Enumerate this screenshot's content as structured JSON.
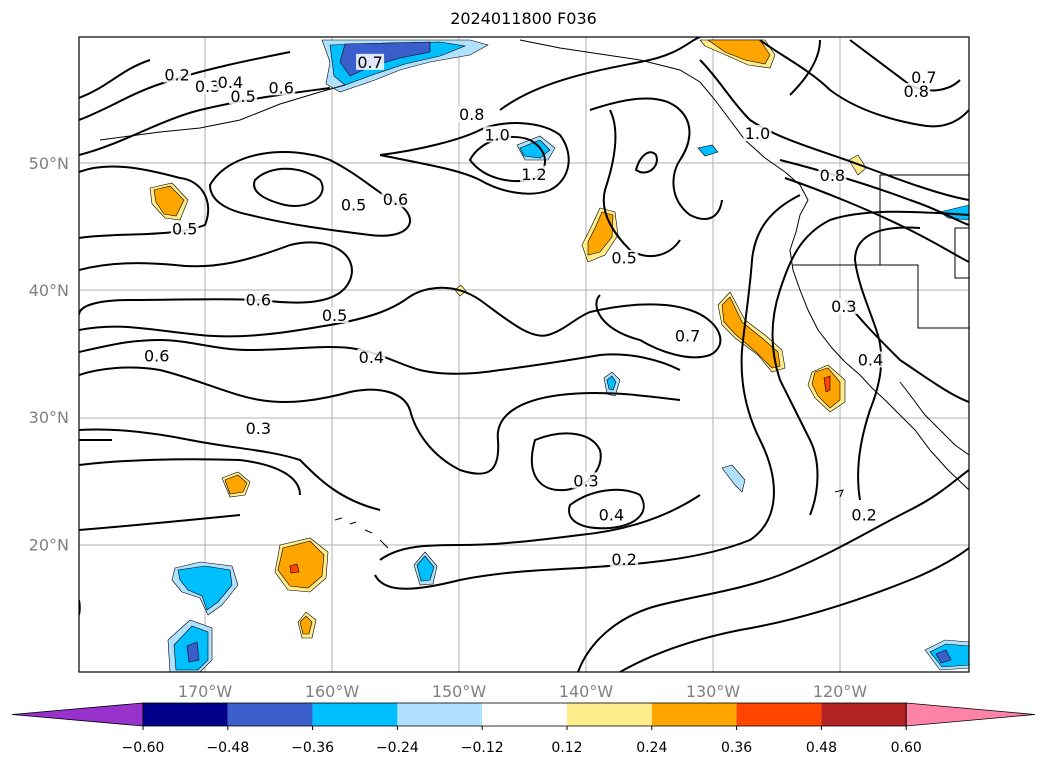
{
  "title": "2024011800 F036",
  "map": {
    "lat_labels": [
      {
        "lat": 50,
        "text": "50°N"
      },
      {
        "lat": 40,
        "text": "40°N"
      },
      {
        "lat": 30,
        "text": "30°N"
      },
      {
        "lat": 20,
        "text": "20°N"
      }
    ],
    "lon_labels": [
      {
        "lon": -170,
        "text": "170°W"
      },
      {
        "lon": -160,
        "text": "160°W"
      },
      {
        "lon": -150,
        "text": "150°W"
      },
      {
        "lon": -140,
        "text": "140°W"
      },
      {
        "lon": -130,
        "text": "130°W"
      },
      {
        "lon": -120,
        "text": "120°W"
      }
    ],
    "contour_labels": [
      {
        "text": "0.2",
        "lon": -172.2,
        "lat": 56.7
      },
      {
        "text": "0.3",
        "lon": -169.8,
        "lat": 55.8
      },
      {
        "text": "0.4",
        "lon": -168.0,
        "lat": 56.1
      },
      {
        "text": "0.5",
        "lon": -167.0,
        "lat": 55.0
      },
      {
        "text": "0.6",
        "lon": -164.0,
        "lat": 55.7
      },
      {
        "text": "0.7",
        "lon": -157.0,
        "lat": 57.7
      },
      {
        "text": "0.8",
        "lon": -149.0,
        "lat": 53.6
      },
      {
        "text": "1.0",
        "lon": -147.0,
        "lat": 52.0
      },
      {
        "text": "1.2",
        "lon": -144.1,
        "lat": 48.9
      },
      {
        "text": "0.5",
        "lon": -158.3,
        "lat": 46.5
      },
      {
        "text": "0.6",
        "lon": -155.0,
        "lat": 46.9
      },
      {
        "text": "0.5",
        "lon": -171.6,
        "lat": 44.6
      },
      {
        "text": "0.6",
        "lon": -165.8,
        "lat": 39.0
      },
      {
        "text": "0.5",
        "lon": -159.8,
        "lat": 37.8
      },
      {
        "text": "0.4",
        "lon": -156.9,
        "lat": 34.5
      },
      {
        "text": "0.6",
        "lon": -173.8,
        "lat": 34.6
      },
      {
        "text": "0.3",
        "lon": -165.8,
        "lat": 28.9
      },
      {
        "text": "0.5",
        "lon": -137.0,
        "lat": 42.3
      },
      {
        "text": "0.7",
        "lon": -132.0,
        "lat": 36.2
      },
      {
        "text": "0.3",
        "lon": -140.0,
        "lat": 24.8
      },
      {
        "text": "0.4",
        "lon": -138.0,
        "lat": 22.1
      },
      {
        "text": "0.2",
        "lon": -137.0,
        "lat": 18.6
      },
      {
        "text": "0.7",
        "lon": -113.4,
        "lat": 56.5
      },
      {
        "text": "0.8",
        "lon": -114.0,
        "lat": 55.4
      },
      {
        "text": "1.0",
        "lon": -126.5,
        "lat": 52.1
      },
      {
        "text": "0.8",
        "lon": -120.6,
        "lat": 48.8
      },
      {
        "text": "0.3",
        "lon": -119.7,
        "lat": 38.5
      },
      {
        "text": "0.4",
        "lon": -117.6,
        "lat": 34.3
      },
      {
        "text": "0.2",
        "lon": -118.1,
        "lat": 22.1
      }
    ]
  },
  "colorbar": {
    "ticks": [
      "−0.60",
      "−0.48",
      "−0.36",
      "−0.24",
      "−0.12",
      "0.12",
      "0.24",
      "0.36",
      "0.48",
      "0.60"
    ],
    "colors": [
      "#9932cc",
      "#00008b",
      "#3a5fcd",
      "#00bfff",
      "#b0e2ff",
      "#ffffff",
      "#ffec8b",
      "#ffa500",
      "#ff4500",
      "#b22222",
      "#ff83a6"
    ]
  }
}
